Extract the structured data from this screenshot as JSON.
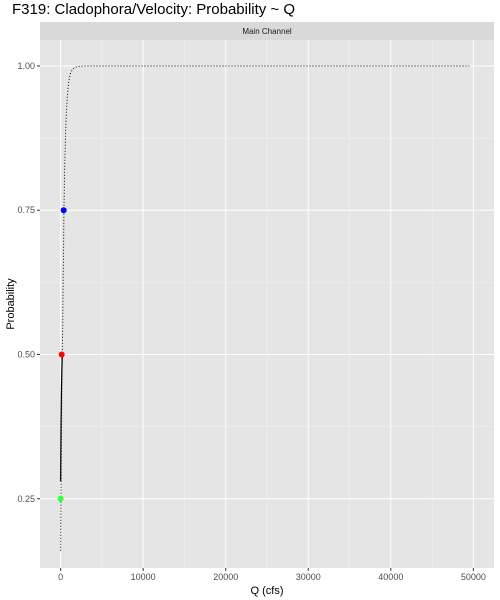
{
  "chart_data": {
    "type": "scatter",
    "title": "F319: Cladophora/Velocity: Probability ~ Q",
    "panel_label": "Main Channel",
    "xlabel": "Q (cfs)",
    "ylabel": "Probability",
    "xlim": [
      -2500,
      52500
    ],
    "ylim": [
      0.13,
      1.045
    ],
    "x_ticks": [
      0,
      10000,
      20000,
      30000,
      40000,
      50000
    ],
    "x_tick_labels": [
      "0",
      "10000",
      "20000",
      "30000",
      "40000",
      "50000"
    ],
    "y_ticks": [
      0.25,
      0.5,
      0.75,
      1.0
    ],
    "y_tick_labels": [
      "0.25",
      "0.50",
      "0.75",
      "1.00"
    ],
    "grid": true,
    "series": [
      {
        "style": "dotted",
        "color": "#000000",
        "x": [
          0,
          20,
          50,
          100,
          150,
          200,
          250,
          300,
          350,
          400,
          500,
          600,
          700,
          800,
          900,
          1000,
          1200,
          1500,
          2000,
          3000,
          5000,
          10000,
          20000,
          30000,
          40000,
          49500
        ],
        "y": [
          0.16,
          0.22,
          0.27,
          0.36,
          0.45,
          0.5,
          0.55,
          0.62,
          0.68,
          0.75,
          0.83,
          0.885,
          0.92,
          0.945,
          0.962,
          0.975,
          0.988,
          0.995,
          0.999,
          1.0,
          1.0,
          1.0,
          1.0,
          1.0,
          1.0,
          1.0
        ]
      },
      {
        "style": "solid",
        "color": "#000000",
        "x": [
          0,
          20,
          50,
          100,
          150,
          200
        ],
        "y": [
          0.28,
          0.33,
          0.38,
          0.44,
          0.475,
          0.5
        ]
      }
    ],
    "highlights": [
      {
        "x": 0,
        "y": 0.25,
        "color": "#33ff33"
      },
      {
        "x": 130,
        "y": 0.5,
        "color": "#ff0000"
      },
      {
        "x": 370,
        "y": 0.75,
        "color": "#0000ff"
      }
    ]
  }
}
